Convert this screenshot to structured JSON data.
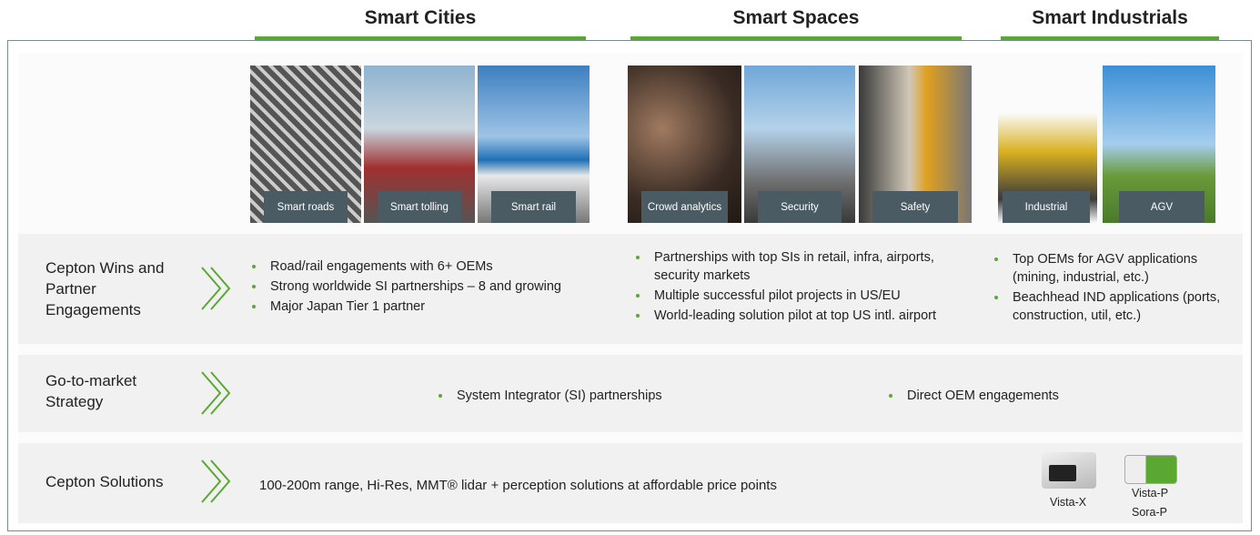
{
  "header": {
    "columns": [
      {
        "title": "Smart Cities",
        "tiles": [
          "Smart roads",
          "Smart tolling",
          "Smart rail"
        ]
      },
      {
        "title": "Smart Spaces",
        "tiles": [
          "Crowd analytics",
          "Security",
          "Safety"
        ]
      },
      {
        "title": "Smart Industrials",
        "tiles": [
          "Industrial",
          "AGV"
        ]
      }
    ]
  },
  "rows": [
    {
      "label": "Cepton Wins and Partner Engagements",
      "cells": [
        [
          "Road/rail engagements with 6+ OEMs",
          "Strong worldwide SI partnerships – 8 and growing",
          "Major Japan Tier 1 partner"
        ],
        [
          "Partnerships with top SIs in retail, infra, airports, security markets",
          "Multiple successful pilot projects in US/EU",
          "World-leading solution pilot at top US intl. airport"
        ],
        [
          "Top OEMs for AGV applications (mining, industrial, etc.)",
          "Beachhead IND applications (ports, construction, util, etc.)"
        ]
      ]
    },
    {
      "label": "Go-to-market Strategy",
      "bullets": [
        "System Integrator (SI) partnerships",
        "Direct OEM engagements"
      ]
    },
    {
      "label": "Cepton Solutions",
      "text": "100-200m range, Hi-Res, MMT® lidar + perception solutions at affordable price points",
      "products": [
        "Vista-X",
        "Vista-P",
        "Sora-P"
      ]
    }
  ]
}
